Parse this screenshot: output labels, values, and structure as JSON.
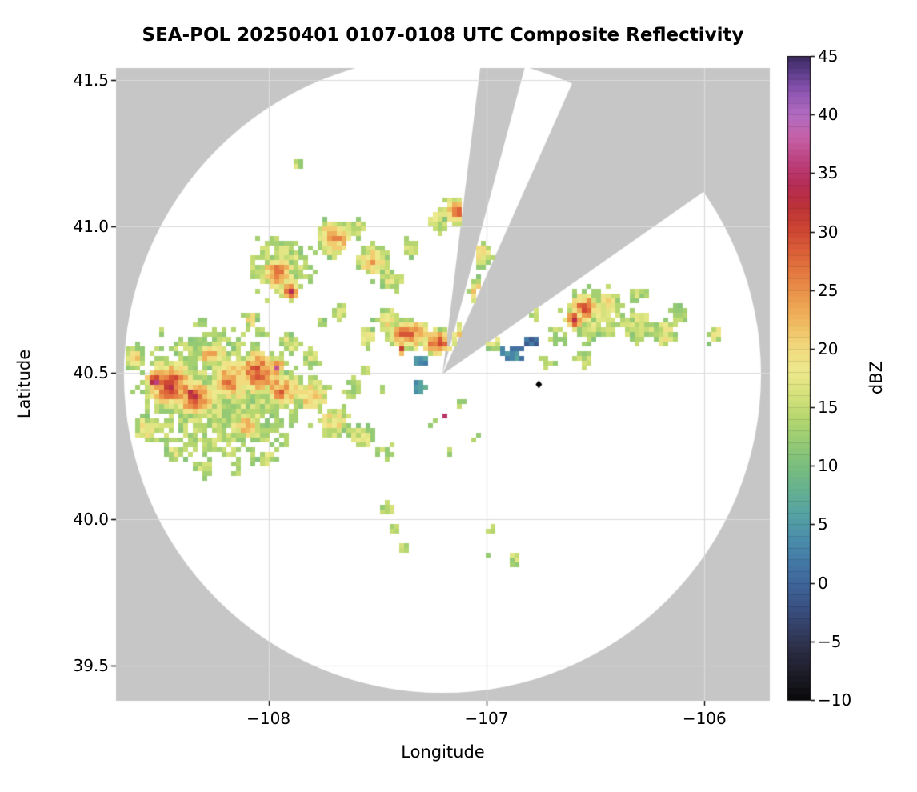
{
  "chart_data": {
    "type": "heatmap",
    "subtype": "radar_composite_reflectivity_ppi",
    "title": "SEA-POL 20250401 0107-0108 UTC Composite Reflectivity",
    "xlabel": "Longitude",
    "ylabel": "Latitude",
    "colorbar_label": "dBZ",
    "xlim": [
      -108.7,
      -105.7
    ],
    "ylim": [
      39.38,
      41.54
    ],
    "grid": true,
    "x_ticks": [
      {
        "v": -108,
        "label": "−108"
      },
      {
        "v": -107,
        "label": "−107"
      },
      {
        "v": -106,
        "label": "−106"
      }
    ],
    "y_ticks": [
      {
        "v": 41.5,
        "label": "41.5"
      },
      {
        "v": 41.0,
        "label": "41.0"
      },
      {
        "v": 40.5,
        "label": "40.5"
      },
      {
        "v": 40.0,
        "label": "40.0"
      },
      {
        "v": 39.5,
        "label": "39.5"
      }
    ],
    "colorbar": {
      "min": -10,
      "max": 45,
      "ticks": [
        {
          "v": 45,
          "label": "45"
        },
        {
          "v": 40,
          "label": "40"
        },
        {
          "v": 35,
          "label": "35"
        },
        {
          "v": 30,
          "label": "30"
        },
        {
          "v": 25,
          "label": "25"
        },
        {
          "v": 20,
          "label": "20"
        },
        {
          "v": 15,
          "label": "15"
        },
        {
          "v": 10,
          "label": "10"
        },
        {
          "v": 5,
          "label": "5"
        },
        {
          "v": 0,
          "label": "0"
        },
        {
          "v": -5,
          "label": "−5"
        },
        {
          "v": -10,
          "label": "−10"
        }
      ]
    },
    "colormap_stops": [
      [
        -10,
        "#0a0a0a"
      ],
      [
        -8,
        "#1b1b26"
      ],
      [
        -6,
        "#2a2a40"
      ],
      [
        -4,
        "#343e63"
      ],
      [
        -2,
        "#3a5183"
      ],
      [
        0,
        "#3f6699"
      ],
      [
        2,
        "#447ba6"
      ],
      [
        4,
        "#4b90aa"
      ],
      [
        6,
        "#57a3a2"
      ],
      [
        8,
        "#66b18f"
      ],
      [
        10,
        "#7abd7e"
      ],
      [
        12,
        "#95ca74"
      ],
      [
        14,
        "#b5d66f"
      ],
      [
        16,
        "#d5e17a"
      ],
      [
        18,
        "#ede98d"
      ],
      [
        20,
        "#f2da7e"
      ],
      [
        22,
        "#f0bd62"
      ],
      [
        24,
        "#ec9f4f"
      ],
      [
        26,
        "#e68143"
      ],
      [
        28,
        "#dd6339"
      ],
      [
        30,
        "#cf4733"
      ],
      [
        32,
        "#bd3336"
      ],
      [
        34,
        "#b52c55"
      ],
      [
        36,
        "#bc417e"
      ],
      [
        38,
        "#c561a6"
      ],
      [
        40,
        "#b26cc1"
      ],
      [
        42,
        "#8c55b2"
      ],
      [
        44,
        "#533780"
      ],
      [
        45,
        "#3a2a5c"
      ]
    ],
    "colors": {
      "outside_scan": "#c6c6c6",
      "inside_scan": "#ffffff",
      "grid": "#dbdbdb",
      "text": "#000000",
      "marker": "#000000"
    },
    "radar": {
      "center_lon": -107.202,
      "center_lat": 40.494,
      "range_deg_lat": 1.087,
      "blocked_sectors_az_deg": [
        [
          7,
          15
        ],
        [
          24,
          55
        ]
      ],
      "site_marker": {
        "lon": -106.76,
        "lat": 40.46
      }
    },
    "echo_cell_format": [
      "lon",
      "lat",
      "rx_deg",
      "ry_deg",
      "core_dbz"
    ],
    "echoes": [
      [
        -108.22,
        40.42,
        0.4,
        0.24,
        15
      ],
      [
        -108.45,
        40.46,
        0.13,
        0.09,
        32
      ],
      [
        -108.52,
        40.47,
        0.05,
        0.04,
        36
      ],
      [
        -108.33,
        40.41,
        0.1,
        0.07,
        31
      ],
      [
        -108.36,
        40.43,
        0.035,
        0.03,
        35
      ],
      [
        -108.18,
        40.47,
        0.11,
        0.08,
        27
      ],
      [
        -108.05,
        40.5,
        0.12,
        0.09,
        29
      ],
      [
        -107.96,
        40.52,
        0.035,
        0.03,
        36
      ],
      [
        -107.94,
        40.44,
        0.1,
        0.07,
        26
      ],
      [
        -107.8,
        40.42,
        0.09,
        0.06,
        23
      ],
      [
        -107.7,
        40.33,
        0.08,
        0.06,
        20
      ],
      [
        -107.57,
        40.28,
        0.06,
        0.05,
        17
      ],
      [
        -108.56,
        40.31,
        0.06,
        0.05,
        20
      ],
      [
        -108.43,
        40.22,
        0.05,
        0.04,
        17
      ],
      [
        -108.3,
        40.17,
        0.05,
        0.04,
        15
      ],
      [
        -108.62,
        40.55,
        0.06,
        0.05,
        22
      ],
      [
        -108.1,
        40.32,
        0.08,
        0.06,
        22
      ],
      [
        -108.26,
        40.56,
        0.08,
        0.05,
        24
      ],
      [
        -107.9,
        40.6,
        0.06,
        0.04,
        18
      ],
      [
        -107.46,
        40.23,
        0.04,
        0.035,
        14
      ],
      [
        -108.0,
        40.21,
        0.05,
        0.04,
        15
      ],
      [
        -107.8,
        40.55,
        0.05,
        0.04,
        16
      ],
      [
        -107.62,
        40.45,
        0.05,
        0.04,
        13
      ],
      [
        -107.94,
        40.86,
        0.15,
        0.11,
        16
      ],
      [
        -107.96,
        40.84,
        0.08,
        0.06,
        29
      ],
      [
        -107.9,
        40.78,
        0.045,
        0.04,
        33
      ],
      [
        -107.7,
        40.96,
        0.09,
        0.07,
        26
      ],
      [
        -107.6,
        41.0,
        0.05,
        0.04,
        16
      ],
      [
        -107.87,
        41.21,
        0.028,
        0.022,
        14
      ],
      [
        -108.08,
        40.68,
        0.035,
        0.03,
        22
      ],
      [
        -107.52,
        40.88,
        0.08,
        0.06,
        24
      ],
      [
        -107.44,
        40.82,
        0.06,
        0.05,
        18
      ],
      [
        -107.67,
        40.71,
        0.04,
        0.03,
        20
      ],
      [
        -107.76,
        40.67,
        0.03,
        0.025,
        15
      ],
      [
        -107.12,
        41.05,
        0.09,
        0.06,
        27
      ],
      [
        -107.22,
        41.02,
        0.05,
        0.045,
        17
      ],
      [
        -107.04,
        40.78,
        0.05,
        0.045,
        22
      ],
      [
        -107.03,
        40.9,
        0.06,
        0.05,
        22
      ],
      [
        -107.35,
        40.93,
        0.045,
        0.04,
        15
      ],
      [
        -107.36,
        40.63,
        0.11,
        0.06,
        28
      ],
      [
        -107.22,
        40.6,
        0.09,
        0.055,
        30
      ],
      [
        -107.1,
        40.62,
        0.07,
        0.05,
        26
      ],
      [
        -107.45,
        40.68,
        0.06,
        0.045,
        20
      ],
      [
        -107.55,
        40.62,
        0.045,
        0.035,
        22
      ],
      [
        -106.97,
        40.6,
        0.04,
        0.035,
        18
      ],
      [
        -107.3,
        40.545,
        0.05,
        0.025,
        5
      ],
      [
        -107.17,
        40.535,
        0.04,
        0.022,
        3
      ],
      [
        -107.385,
        40.575,
        0.02,
        0.016,
        42
      ],
      [
        -106.89,
        40.56,
        0.06,
        0.03,
        5
      ],
      [
        -107.3,
        40.45,
        0.028,
        0.02,
        8
      ],
      [
        -107.12,
        40.4,
        0.025,
        0.02,
        12
      ],
      [
        -107.25,
        40.33,
        0.028,
        0.02,
        10
      ],
      [
        -107.19,
        40.35,
        0.018,
        0.015,
        40
      ],
      [
        -107.05,
        40.28,
        0.028,
        0.022,
        12
      ],
      [
        -106.95,
        40.22,
        0.028,
        0.022,
        10
      ],
      [
        -107.17,
        40.22,
        0.028,
        0.02,
        13
      ],
      [
        -107.55,
        40.5,
        0.028,
        0.02,
        13
      ],
      [
        -107.47,
        40.44,
        0.024,
        0.018,
        12
      ],
      [
        -107.45,
        40.03,
        0.032,
        0.028,
        15
      ],
      [
        -107.42,
        39.97,
        0.028,
        0.024,
        13
      ],
      [
        -107.37,
        39.9,
        0.028,
        0.024,
        14
      ],
      [
        -106.97,
        39.96,
        0.028,
        0.024,
        13
      ],
      [
        -106.88,
        39.86,
        0.036,
        0.03,
        15
      ],
      [
        -106.99,
        39.88,
        0.022,
        0.018,
        12
      ],
      [
        -106.5,
        40.7,
        0.15,
        0.1,
        15
      ],
      [
        -106.55,
        40.72,
        0.08,
        0.055,
        30
      ],
      [
        -106.6,
        40.68,
        0.045,
        0.04,
        32
      ],
      [
        -106.44,
        40.74,
        0.055,
        0.045,
        24
      ],
      [
        -106.3,
        40.66,
        0.08,
        0.055,
        18
      ],
      [
        -106.18,
        40.63,
        0.055,
        0.045,
        20
      ],
      [
        -106.12,
        40.7,
        0.045,
        0.04,
        16
      ],
      [
        -105.95,
        40.63,
        0.035,
        0.045,
        18
      ],
      [
        -106.68,
        40.62,
        0.045,
        0.04,
        14
      ],
      [
        -106.55,
        40.55,
        0.045,
        0.03,
        14
      ],
      [
        -106.72,
        40.54,
        0.035,
        0.028,
        12
      ],
      [
        -106.3,
        40.76,
        0.045,
        0.035,
        15
      ],
      [
        -106.79,
        40.7,
        0.035,
        0.028,
        16
      ],
      [
        -106.8,
        40.6,
        0.035,
        0.022,
        4
      ]
    ]
  }
}
